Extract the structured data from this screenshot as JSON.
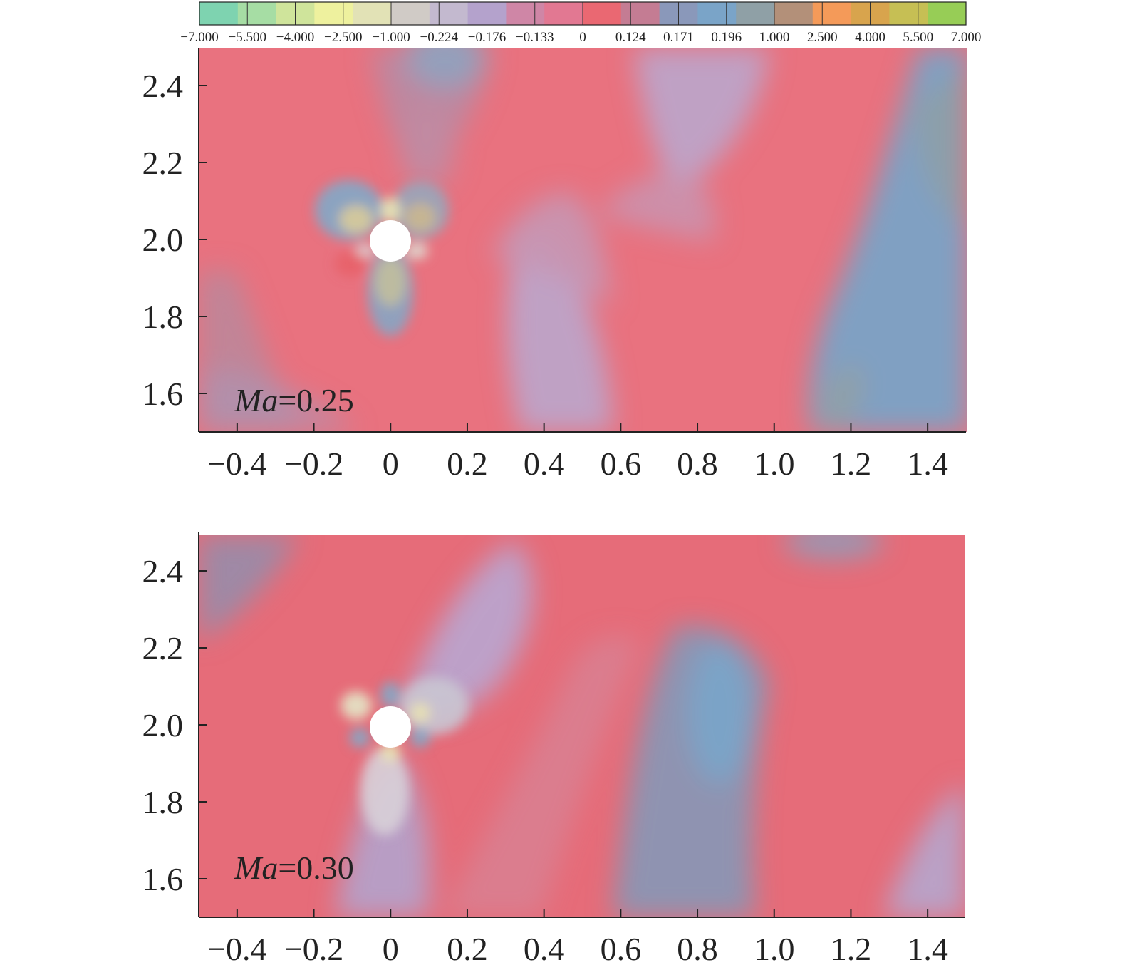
{
  "colorbar": {
    "labels": [
      "−7.000",
      "−5.500",
      "−4.000",
      "−2.500",
      "−1.000",
      "−0.224",
      "−0.176",
      "−0.133",
      "0",
      "0.124",
      "0.171",
      "0.196",
      "1.000",
      "2.500",
      "4.000",
      "5.500",
      "7.000"
    ],
    "colors": [
      "#7ed3b0",
      "#a6dda4",
      "#cfe49b",
      "#eef19e",
      "#e2e2b6",
      "#d0cbc6",
      "#c3b9cf",
      "#b4a2cc",
      "#cf86a6",
      "#e27892",
      "#ea6872",
      "#c47c93",
      "#8a98ba",
      "#7aa4c8",
      "#8fa0a6",
      "#b39079",
      "#f49a59",
      "#d8a44d",
      "#c6bf54",
      "#97cd56"
    ]
  },
  "chart_data": [
    {
      "type": "heatmap",
      "title": "",
      "label_text": "Ma",
      "label_value": "=0.25",
      "xlim": [
        -0.5,
        1.5
      ],
      "ylim": [
        1.5,
        2.5
      ],
      "x_ticks": [
        "−0.4",
        "−0.2",
        "0",
        "0.2",
        "0.4",
        "0.6",
        "0.8",
        "1.0",
        "1.2",
        "1.4"
      ],
      "x_tick_values": [
        -0.4,
        -0.2,
        0,
        0.2,
        0.4,
        0.6,
        0.8,
        1.0,
        1.2,
        1.4
      ],
      "y_ticks": [
        "1.6",
        "1.8",
        "2.0",
        "2.2",
        "2.4"
      ],
      "y_tick_values": [
        1.6,
        1.8,
        2.0,
        2.2,
        2.4
      ],
      "cylinder_center": [
        0,
        2.0
      ],
      "cylinder_radius": 0.05
    },
    {
      "type": "heatmap",
      "title": "",
      "label_text": "Ma",
      "label_value": "=0.30",
      "xlim": [
        -0.5,
        1.5
      ],
      "ylim": [
        1.5,
        2.5
      ],
      "x_ticks": [
        "−0.4",
        "−0.2",
        "0",
        "0.2",
        "0.4",
        "0.6",
        "0.8",
        "1.0",
        "1.2",
        "1.4"
      ],
      "x_tick_values": [
        -0.4,
        -0.2,
        0,
        0.2,
        0.4,
        0.6,
        0.8,
        1.0,
        1.2,
        1.4
      ],
      "y_ticks": [
        "1.6",
        "1.8",
        "2.0",
        "2.2",
        "2.4"
      ],
      "y_tick_values": [
        1.6,
        1.8,
        2.0,
        2.2,
        2.4
      ],
      "cylinder_center": [
        0,
        2.0
      ],
      "cylinder_radius": 0.05
    }
  ]
}
